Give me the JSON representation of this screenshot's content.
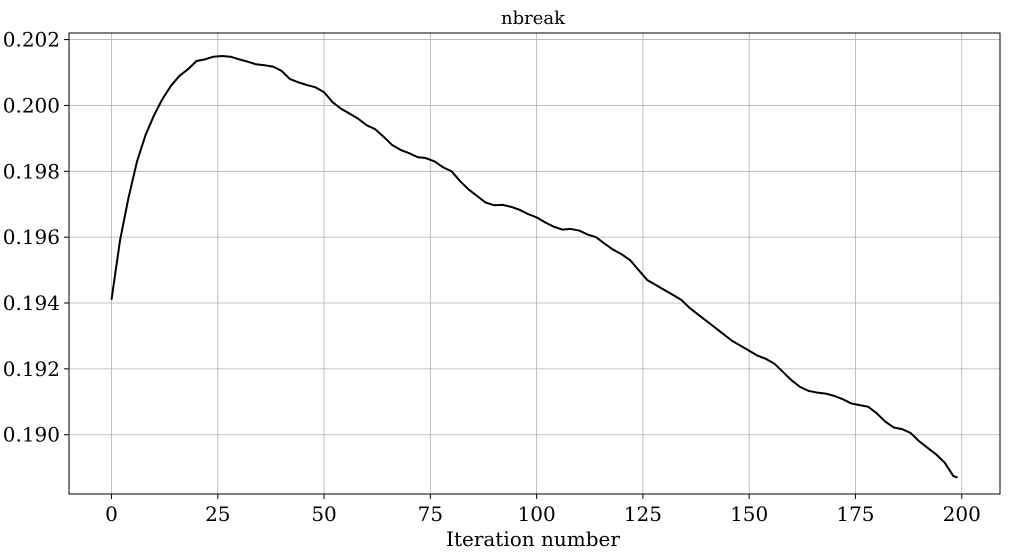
{
  "chart_data": {
    "type": "line",
    "title": "nbreak",
    "xlabel": "Iteration number",
    "ylabel": "",
    "xlim": [
      -10,
      209
    ],
    "ylim": [
      0.1882,
      0.2022
    ],
    "grid": true,
    "xticks": [
      0,
      25,
      50,
      75,
      100,
      125,
      150,
      175,
      200
    ],
    "yticks": [
      0.19,
      0.192,
      0.194,
      0.196,
      0.198,
      0.2,
      0.202
    ],
    "xtick_labels": [
      "0",
      "25",
      "50",
      "75",
      "100",
      "125",
      "150",
      "175",
      "200"
    ],
    "ytick_labels": [
      "0.190",
      "0.192",
      "0.194",
      "0.196",
      "0.198",
      "0.200",
      "0.202"
    ],
    "series": [
      {
        "color": "#000000",
        "x": [
          0,
          2,
          4,
          6,
          8,
          10,
          12,
          14,
          16,
          18,
          20,
          22,
          24,
          26,
          28,
          30,
          32,
          34,
          36,
          38,
          40,
          42,
          44,
          46,
          48,
          50,
          52,
          54,
          56,
          58,
          60,
          62,
          64,
          66,
          68,
          70,
          72,
          74,
          76,
          78,
          80,
          82,
          84,
          86,
          88,
          90,
          92,
          94,
          96,
          98,
          100,
          102,
          104,
          106,
          108,
          110,
          112,
          114,
          116,
          118,
          120,
          122,
          124,
          126,
          128,
          130,
          132,
          134,
          136,
          138,
          140,
          142,
          144,
          146,
          148,
          150,
          152,
          154,
          156,
          158,
          160,
          162,
          164,
          166,
          168,
          170,
          172,
          174,
          176,
          178,
          180,
          182,
          184,
          186,
          188,
          190,
          192,
          194,
          196,
          198,
          199
        ],
        "y": [
          0.1941,
          0.1959,
          0.1972,
          0.1983,
          0.1991,
          0.1997,
          0.2002,
          0.2006,
          0.2009,
          0.2011,
          0.20135,
          0.2014,
          0.20148,
          0.2015,
          0.20148,
          0.2014,
          0.20133,
          0.20125,
          0.20122,
          0.20118,
          0.20105,
          0.2008,
          0.2007,
          0.20062,
          0.20055,
          0.2004,
          0.2001,
          0.1999,
          0.19975,
          0.1996,
          0.1994,
          0.19928,
          0.19905,
          0.1988,
          0.19865,
          0.19855,
          0.19843,
          0.1984,
          0.1983,
          0.19812,
          0.198,
          0.1977,
          0.19745,
          0.19725,
          0.19705,
          0.19697,
          0.19698,
          0.19692,
          0.19683,
          0.1967,
          0.1966,
          0.19645,
          0.19632,
          0.19623,
          0.19625,
          0.1962,
          0.19608,
          0.196,
          0.1958,
          0.19562,
          0.19548,
          0.1953,
          0.195,
          0.1947,
          0.19455,
          0.1944,
          0.19425,
          0.1941,
          0.19385,
          0.19365,
          0.19345,
          0.19325,
          0.19305,
          0.19285,
          0.1927,
          0.19255,
          0.1924,
          0.1923,
          0.19215,
          0.1919,
          0.19165,
          0.19145,
          0.19133,
          0.19128,
          0.19125,
          0.19118,
          0.19108,
          0.19095,
          0.1909,
          0.19085,
          0.19065,
          0.1904,
          0.19022,
          0.19017,
          0.19005,
          0.1898,
          0.1896,
          0.1894,
          0.18915,
          0.18875,
          0.1887
        ]
      }
    ]
  }
}
